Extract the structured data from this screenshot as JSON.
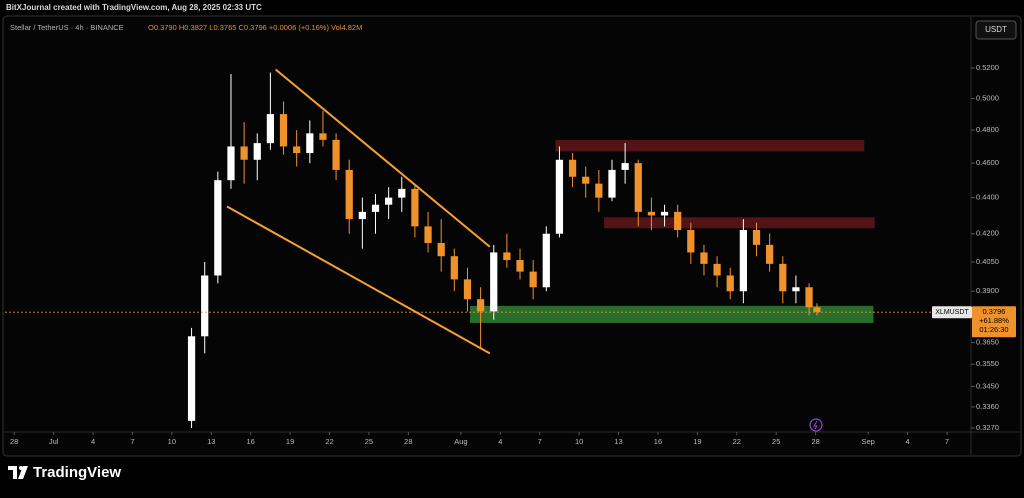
{
  "header": "BitXJournal created with TradingView.com, Aug 28, 2025 02:33 UTC",
  "brand": "TradingView",
  "currency_button": "USDT",
  "chart_data": {
    "type": "candlestick",
    "symbol": "Stellar / TetherUS · 4h · BINANCE",
    "ohlc_text": "O0.3790 H0.3827 L0.3765 C0.3796 +0.0006 (+0.16%) Vol4.82M",
    "log_scale": true,
    "up_color": "#ffffff",
    "down_color": "#f0922b",
    "x": [
      13.5,
      14.5,
      15.5,
      16.5,
      17.5,
      18.5,
      19.5,
      20.5,
      21.5,
      22.5,
      23.5,
      24.5,
      25.5,
      26.5,
      27.5,
      28.5,
      29.5,
      30.5,
      31.5,
      32.5,
      33.5,
      34.5,
      35.5,
      36.5,
      37.5,
      38.5,
      39.5,
      40.5,
      41.5,
      42.5,
      43.5,
      44.5,
      45.5,
      46.5,
      47.5,
      48.5,
      49.5,
      50.5,
      51.5,
      52.5,
      53.5,
      54.5,
      55.5,
      56.5,
      57.5,
      58.5,
      59.5,
      60.5,
      61.1
    ],
    "open": [
      0.33,
      0.368,
      0.398,
      0.45,
      0.47,
      0.462,
      0.472,
      0.49,
      0.47,
      0.466,
      0.478,
      0.474,
      0.456,
      0.428,
      0.432,
      0.436,
      0.44,
      0.445,
      0.424,
      0.415,
      0.408,
      0.396,
      0.386,
      0.38,
      0.41,
      0.406,
      0.4,
      0.392,
      0.42,
      0.462,
      0.452,
      0.448,
      0.44,
      0.456,
      0.46,
      0.432,
      0.43,
      0.432,
      0.422,
      0.41,
      0.404,
      0.398,
      0.39,
      0.422,
      0.414,
      0.404,
      0.39,
      0.392,
      0.382
    ],
    "high": [
      0.372,
      0.405,
      0.455,
      0.516,
      0.485,
      0.478,
      0.517,
      0.498,
      0.48,
      0.486,
      0.492,
      0.478,
      0.462,
      0.44,
      0.442,
      0.446,
      0.452,
      0.448,
      0.432,
      0.428,
      0.412,
      0.402,
      0.392,
      0.414,
      0.42,
      0.412,
      0.406,
      0.424,
      0.47,
      0.466,
      0.458,
      0.456,
      0.462,
      0.472,
      0.462,
      0.44,
      0.436,
      0.436,
      0.426,
      0.414,
      0.408,
      0.402,
      0.428,
      0.426,
      0.42,
      0.408,
      0.398,
      0.394,
      0.384
    ],
    "low": [
      0.327,
      0.36,
      0.394,
      0.445,
      0.448,
      0.45,
      0.468,
      0.465,
      0.458,
      0.46,
      0.47,
      0.45,
      0.42,
      0.412,
      0.42,
      0.428,
      0.432,
      0.418,
      0.41,
      0.4,
      0.39,
      0.38,
      0.362,
      0.376,
      0.402,
      0.396,
      0.386,
      0.39,
      0.418,
      0.446,
      0.44,
      0.432,
      0.438,
      0.448,
      0.424,
      0.422,
      0.424,
      0.418,
      0.404,
      0.398,
      0.392,
      0.386,
      0.384,
      0.408,
      0.4,
      0.384,
      0.384,
      0.378,
      0.378
    ],
    "close": [
      0.368,
      0.398,
      0.45,
      0.47,
      0.462,
      0.472,
      0.49,
      0.47,
      0.466,
      0.478,
      0.474,
      0.456,
      0.428,
      0.432,
      0.436,
      0.44,
      0.445,
      0.424,
      0.415,
      0.408,
      0.396,
      0.386,
      0.38,
      0.41,
      0.406,
      0.4,
      0.392,
      0.42,
      0.462,
      0.452,
      0.448,
      0.44,
      0.456,
      0.46,
      0.432,
      0.43,
      0.432,
      0.422,
      0.41,
      0.404,
      0.398,
      0.39,
      0.422,
      0.414,
      0.404,
      0.39,
      0.392,
      0.382,
      0.3796
    ],
    "xlim": [
      -0.7,
      72.75
    ],
    "ylim": [
      0.3253,
      0.5546
    ],
    "xticks": [
      {
        "value": 0,
        "label": "28"
      },
      {
        "value": 3,
        "label": "Jul"
      },
      {
        "value": 6,
        "label": "4"
      },
      {
        "value": 9,
        "label": "7"
      },
      {
        "value": 12,
        "label": "10"
      },
      {
        "value": 15,
        "label": "13"
      },
      {
        "value": 18,
        "label": "16"
      },
      {
        "value": 21,
        "label": "19"
      },
      {
        "value": 24,
        "label": "22"
      },
      {
        "value": 27,
        "label": "25"
      },
      {
        "value": 30,
        "label": "28"
      },
      {
        "value": 34,
        "label": "Aug"
      },
      {
        "value": 37,
        "label": "4"
      },
      {
        "value": 40,
        "label": "7"
      },
      {
        "value": 43,
        "label": "10"
      },
      {
        "value": 46,
        "label": "13"
      },
      {
        "value": 49,
        "label": "16"
      },
      {
        "value": 52,
        "label": "19"
      },
      {
        "value": 55,
        "label": "22"
      },
      {
        "value": 58,
        "label": "25"
      },
      {
        "value": 61,
        "label": "28"
      },
      {
        "value": 65,
        "label": "Sep"
      },
      {
        "value": 68,
        "label": "4"
      },
      {
        "value": 71,
        "label": "7"
      }
    ],
    "yticks": [
      {
        "value": 0.52,
        "label": "0.5200"
      },
      {
        "value": 0.5,
        "label": "0.5000"
      },
      {
        "value": 0.48,
        "label": "0.4800"
      },
      {
        "value": 0.46,
        "label": "0.4600"
      },
      {
        "value": 0.44,
        "label": "0.4400"
      },
      {
        "value": 0.42,
        "label": "0.4200"
      },
      {
        "value": 0.405,
        "label": "0.4050"
      },
      {
        "value": 0.39,
        "label": "0.3900"
      },
      {
        "value": 0.365,
        "label": "0.3650"
      },
      {
        "value": 0.355,
        "label": "0.3550"
      },
      {
        "value": 0.345,
        "label": "0.3450"
      },
      {
        "value": 0.336,
        "label": "0.3360"
      },
      {
        "value": 0.327,
        "label": "0.3270"
      }
    ],
    "trendlines": [
      {
        "x": [
          19.9,
          36.2
        ],
        "y": [
          0.519,
          0.413
        ],
        "color": "#f7a035"
      },
      {
        "x": [
          16.2,
          36.2
        ],
        "y": [
          0.435,
          0.36
        ],
        "color": "#f7a035"
      }
    ],
    "zones": [
      {
        "x": [
          41.2,
          64.7
        ],
        "y": [
          0.467,
          0.474
        ],
        "color": "#5c1519"
      },
      {
        "x": [
          44.9,
          65.5
        ],
        "y": [
          0.423,
          0.429
        ],
        "color": "#5c1519"
      },
      {
        "x": [
          34.7,
          65.4
        ],
        "y": [
          0.3744,
          0.3827
        ],
        "color": "#2f7a33"
      }
    ],
    "price_label": {
      "symbol": "XLMUSDT",
      "price": "0.3796",
      "change": "+61.88%",
      "countdown": "01:26:30"
    }
  }
}
